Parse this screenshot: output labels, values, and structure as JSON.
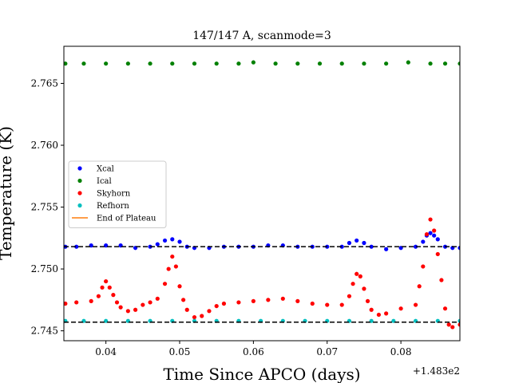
{
  "chart_data": {
    "type": "scatter",
    "title": "147/147 A, scanmode=3",
    "xlabel": "Time Since APCO (days)",
    "ylabel": "Temperature (K)",
    "x_offset_label": "+1.483e2",
    "xlim": [
      0.0343,
      0.088
    ],
    "ylim": [
      2.7442,
      2.768
    ],
    "x_ticks": [
      0.04,
      0.05,
      0.06,
      0.07,
      0.08
    ],
    "x_tick_labels": [
      "0.04",
      "0.05",
      "0.06",
      "0.07",
      "0.08"
    ],
    "y_ticks": [
      2.745,
      2.75,
      2.755,
      2.76,
      2.765
    ],
    "y_tick_labels": [
      "2.745",
      "2.750",
      "2.755",
      "2.760",
      "2.765"
    ],
    "grid": false,
    "legend_position": "center-left",
    "reference_lines": [
      {
        "y": 2.7518,
        "style": "dashed",
        "color": "#000000"
      },
      {
        "y": 2.7457,
        "style": "dashed",
        "color": "#000000"
      }
    ],
    "series": [
      {
        "name": "Xcal",
        "color": "#0000ff",
        "marker": "dot",
        "x": [
          0.0345,
          0.036,
          0.038,
          0.04,
          0.042,
          0.044,
          0.046,
          0.047,
          0.048,
          0.049,
          0.05,
          0.051,
          0.052,
          0.054,
          0.056,
          0.058,
          0.06,
          0.062,
          0.064,
          0.066,
          0.068,
          0.07,
          0.072,
          0.073,
          0.074,
          0.075,
          0.076,
          0.078,
          0.08,
          0.082,
          0.083,
          0.0835,
          0.084,
          0.0845,
          0.085,
          0.086,
          0.087,
          0.088
        ],
        "y": [
          2.7518,
          2.7518,
          2.7519,
          2.7519,
          2.7519,
          2.7517,
          2.7518,
          2.752,
          2.7523,
          2.7524,
          2.7522,
          2.7518,
          2.7517,
          2.7517,
          2.7518,
          2.7518,
          2.7518,
          2.7519,
          2.7519,
          2.7518,
          2.7518,
          2.7518,
          2.7518,
          2.7521,
          2.7523,
          2.7521,
          2.7518,
          2.7516,
          2.7517,
          2.7518,
          2.7522,
          2.7527,
          2.7529,
          2.7527,
          2.7524,
          2.7518,
          2.7517,
          2.7517
        ]
      },
      {
        "name": "Ical",
        "color": "#008000",
        "marker": "dot",
        "x": [
          0.0345,
          0.037,
          0.04,
          0.043,
          0.046,
          0.049,
          0.052,
          0.055,
          0.058,
          0.06,
          0.063,
          0.066,
          0.069,
          0.072,
          0.075,
          0.078,
          0.081,
          0.084,
          0.086,
          0.088
        ],
        "y": [
          2.7666,
          2.7666,
          2.7666,
          2.7666,
          2.7666,
          2.7666,
          2.7666,
          2.7666,
          2.7666,
          2.7667,
          2.7666,
          2.7666,
          2.7666,
          2.7666,
          2.7666,
          2.7666,
          2.7667,
          2.7666,
          2.7666,
          2.7666
        ]
      },
      {
        "name": "Skyhorn",
        "color": "#ff0000",
        "marker": "dot",
        "x": [
          0.0345,
          0.036,
          0.038,
          0.039,
          0.0395,
          0.04,
          0.0405,
          0.041,
          0.0415,
          0.042,
          0.043,
          0.044,
          0.045,
          0.046,
          0.047,
          0.048,
          0.0485,
          0.049,
          0.0495,
          0.05,
          0.0505,
          0.051,
          0.052,
          0.053,
          0.054,
          0.055,
          0.056,
          0.058,
          0.06,
          0.062,
          0.064,
          0.066,
          0.068,
          0.07,
          0.072,
          0.073,
          0.0735,
          0.074,
          0.0745,
          0.075,
          0.0755,
          0.076,
          0.077,
          0.078,
          0.08,
          0.082,
          0.0825,
          0.083,
          0.0835,
          0.084,
          0.0845,
          0.085,
          0.0855,
          0.086,
          0.0865,
          0.087,
          0.088
        ],
        "y": [
          2.7472,
          2.7473,
          2.7474,
          2.7478,
          2.7485,
          2.749,
          2.7485,
          2.7479,
          2.7473,
          2.7469,
          2.7466,
          2.7467,
          2.7471,
          2.7473,
          2.7476,
          2.7488,
          2.75,
          2.751,
          2.7502,
          2.7486,
          2.7475,
          2.7467,
          2.7461,
          2.7462,
          2.7466,
          2.747,
          2.7472,
          2.7473,
          2.7474,
          2.7475,
          2.7476,
          2.7474,
          2.7472,
          2.7471,
          2.7471,
          2.7478,
          2.7488,
          2.7496,
          2.7494,
          2.7484,
          2.7474,
          2.7467,
          2.7463,
          2.7464,
          2.7468,
          2.7471,
          2.7486,
          2.7502,
          2.7528,
          2.754,
          2.7531,
          2.7512,
          2.7491,
          2.7468,
          2.7455,
          2.7453,
          2.7455
        ]
      },
      {
        "name": "Refhorn",
        "color": "#00bfbf",
        "marker": "dot",
        "x": [
          0.0345,
          0.037,
          0.04,
          0.043,
          0.046,
          0.049,
          0.052,
          0.055,
          0.058,
          0.061,
          0.064,
          0.067,
          0.07,
          0.073,
          0.076,
          0.079,
          0.082,
          0.085,
          0.088
        ],
        "y": [
          2.7458,
          2.7458,
          2.7458,
          2.7458,
          2.7458,
          2.7458,
          2.7458,
          2.7458,
          2.7458,
          2.7458,
          2.7458,
          2.7458,
          2.7458,
          2.7458,
          2.7458,
          2.7458,
          2.7458,
          2.7458,
          2.7458
        ]
      },
      {
        "name": "End of Plateau",
        "color": "#ff7f0e",
        "marker": "line",
        "x": [],
        "y": []
      }
    ]
  }
}
